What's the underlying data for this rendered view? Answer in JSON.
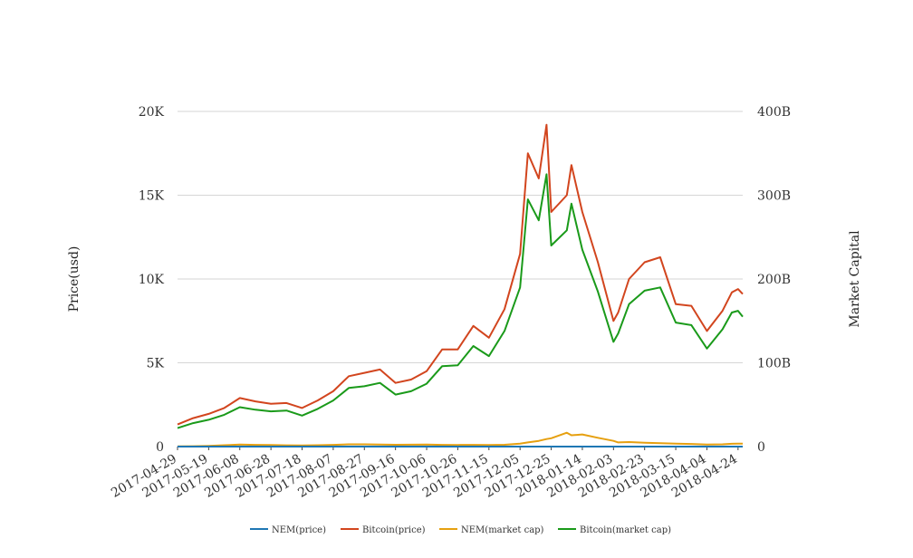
{
  "chart_data": {
    "type": "line",
    "title": "",
    "xlabel": "",
    "ylabel_left": "Price(usd)",
    "ylabel_right": "Market Capital",
    "grid": true,
    "legend_position": "bottom",
    "x_tick_labels": [
      "2017-04-29",
      "2017-05-19",
      "2017-06-08",
      "2017-06-28",
      "2017-07-18",
      "2017-08-07",
      "2017-08-27",
      "2017-09-16",
      "2017-10-06",
      "2017-10-26",
      "2017-11-15",
      "2017-12-05",
      "2017-12-25",
      "2018-01-14",
      "2018-02-03",
      "2018-02-23",
      "2018-03-15",
      "2018-04-04",
      "2018-04-24"
    ],
    "y_left_ticks": [
      {
        "value": 0,
        "label": "0"
      },
      {
        "value": 5000,
        "label": "5K"
      },
      {
        "value": 10000,
        "label": "10K"
      },
      {
        "value": 15000,
        "label": "15K"
      },
      {
        "value": 20000,
        "label": "20K"
      }
    ],
    "y_right_ticks": [
      {
        "value": 0,
        "label": "0"
      },
      {
        "value": 100000000000,
        "label": "100B"
      },
      {
        "value": 200000000000,
        "label": "200B"
      },
      {
        "value": 300000000000,
        "label": "300B"
      },
      {
        "value": 400000000000,
        "label": "400B"
      }
    ],
    "ylim_left": [
      0,
      20000
    ],
    "ylim_right": [
      0,
      400000000000
    ],
    "x": [
      "2017-04-29",
      "2017-05-09",
      "2017-05-19",
      "2017-05-29",
      "2017-06-08",
      "2017-06-18",
      "2017-06-28",
      "2017-07-08",
      "2017-07-18",
      "2017-07-28",
      "2017-08-07",
      "2017-08-17",
      "2017-08-27",
      "2017-09-06",
      "2017-09-16",
      "2017-09-26",
      "2017-10-06",
      "2017-10-16",
      "2017-10-26",
      "2017-11-05",
      "2017-11-15",
      "2017-11-25",
      "2017-12-05",
      "2017-12-10",
      "2017-12-17",
      "2017-12-22",
      "2017-12-25",
      "2018-01-04",
      "2018-01-07",
      "2018-01-14",
      "2018-01-24",
      "2018-02-03",
      "2018-02-06",
      "2018-02-13",
      "2018-02-23",
      "2018-03-05",
      "2018-03-15",
      "2018-03-25",
      "2018-04-04",
      "2018-04-14",
      "2018-04-20",
      "2018-04-24",
      "2018-04-27"
    ],
    "series": [
      {
        "name": "NEM(price)",
        "color": "#1f77b4",
        "axis": "left",
        "values": [
          0.02,
          0.04,
          0.1,
          0.18,
          0.26,
          0.22,
          0.19,
          0.17,
          0.15,
          0.18,
          0.23,
          0.3,
          0.3,
          0.28,
          0.25,
          0.26,
          0.27,
          0.23,
          0.21,
          0.22,
          0.2,
          0.24,
          0.4,
          0.55,
          0.75,
          1.0,
          1.1,
          1.85,
          1.5,
          1.6,
          1.15,
          0.75,
          0.55,
          0.6,
          0.5,
          0.45,
          0.4,
          0.35,
          0.27,
          0.3,
          0.38,
          0.4,
          0.4
        ]
      },
      {
        "name": "Bitcoin(price)",
        "color": "#d2451e",
        "axis": "left",
        "values": [
          1320,
          1700,
          1950,
          2300,
          2900,
          2700,
          2550,
          2600,
          2300,
          2750,
          3300,
          4200,
          4400,
          4600,
          3800,
          4000,
          4500,
          5800,
          5800,
          7200,
          6500,
          8200,
          11500,
          17500,
          16000,
          19200,
          14000,
          15000,
          16800,
          14000,
          11000,
          7500,
          8000,
          10000,
          11000,
          11300,
          8500,
          8400,
          6900,
          8100,
          9200,
          9400,
          9100
        ]
      },
      {
        "name": "NEM(market cap)",
        "color": "#e6a010",
        "axis": "right",
        "values": [
          200000000,
          400000000,
          900000000,
          1600000000,
          2400000000,
          2000000000,
          1800000000,
          1500000000,
          1300000000,
          1600000000,
          2000000000,
          2700000000,
          2700000000,
          2500000000,
          2200000000,
          2300000000,
          2400000000,
          2100000000,
          1900000000,
          2000000000,
          1800000000,
          2200000000,
          3600000000,
          5000000000,
          6800000000,
          9000000000,
          10000000000,
          16500000000,
          13500000000,
          14500000000,
          10500000000,
          6800000000,
          5000000000,
          5400000000,
          4500000000,
          4000000000,
          3600000000,
          3100000000,
          2400000000,
          2700000000,
          3400000000,
          3600000000,
          3600000000
        ]
      },
      {
        "name": "Bitcoin(market cap)",
        "color": "#1a9a1a",
        "axis": "right",
        "values": [
          22000000000,
          28000000000,
          32000000000,
          38000000000,
          47000000000,
          44000000000,
          42000000000,
          43000000000,
          37000000000,
          45000000000,
          55000000000,
          70000000000,
          72000000000,
          76000000000,
          62000000000,
          66000000000,
          75000000000,
          96000000000,
          97000000000,
          120000000000,
          108000000000,
          138000000000,
          190000000000,
          295000000000,
          270000000000,
          325000000000,
          240000000000,
          258000000000,
          290000000000,
          235000000000,
          185000000000,
          125000000000,
          135000000000,
          170000000000,
          186000000000,
          190000000000,
          148000000000,
          145000000000,
          117000000000,
          140000000000,
          160000000000,
          162000000000,
          155000000000
        ]
      }
    ]
  }
}
